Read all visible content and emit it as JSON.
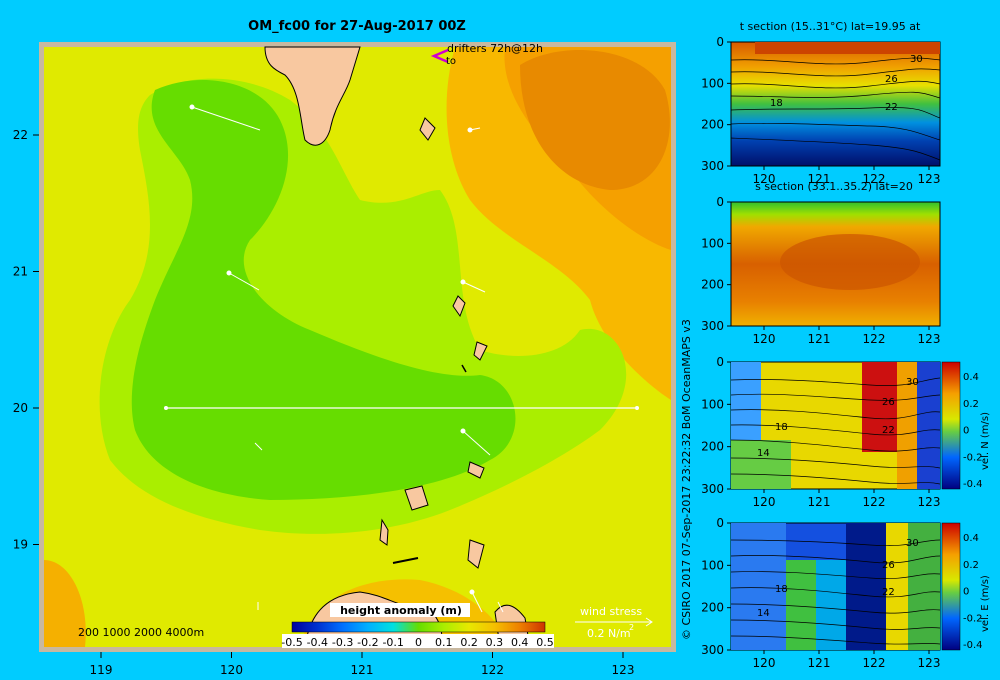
{
  "main_title": "OM_fc00 for 27-Aug-2017 00Z",
  "credit": "© CSIRO 2017   07-Sep-2017 23:22:32 BoM OceanMAPS v3",
  "map": {
    "x_ticks": [
      "119",
      "120",
      "121",
      "122",
      "123"
    ],
    "y_ticks": [
      "22",
      "21",
      "20",
      "19"
    ],
    "drifters_label": "drifters 72h@12h",
    "drifters_sub": "to",
    "bathy_label": "200  1000  2000  4000m",
    "wind_stress_label": "wind stress",
    "wind_stress_value": "0.2 N/m",
    "wind_stress_exp": "2",
    "colorbar_title": "height anomaly  (m)",
    "colorbar_ticks": [
      "-0.5",
      "-0.4",
      "-0.3",
      "-0.2",
      "-0.1",
      "0",
      "0.1",
      "0.2",
      "0.3",
      "0.4",
      "0.5"
    ]
  },
  "panels": [
    {
      "title": "t section (15..31°C) lat=19.95 at",
      "x_ticks": [
        "120",
        "121",
        "122",
        "123"
      ],
      "y_ticks": [
        "0",
        "100",
        "200",
        "300"
      ],
      "contour_labels": [
        "30",
        "26",
        "22",
        "18"
      ]
    },
    {
      "title": "s section (33.1..35.2) lat=20",
      "x_ticks": [
        "120",
        "121",
        "122",
        "123"
      ],
      "y_ticks": [
        "0",
        "100",
        "200",
        "300"
      ],
      "contour_labels": []
    },
    {
      "title": "",
      "x_ticks": [
        "120",
        "121",
        "122",
        "123"
      ],
      "y_ticks": [
        "0",
        "100",
        "200",
        "300"
      ],
      "contour_labels": [
        "30",
        "26",
        "22",
        "18",
        "14"
      ],
      "cbar_label": "vel. N (m/s)",
      "cbar_ticks": [
        "0.4",
        "0.2",
        "0",
        "-0.2",
        "-0.4"
      ]
    },
    {
      "title": "",
      "x_ticks": [
        "120",
        "121",
        "122",
        "123"
      ],
      "y_ticks": [
        "0",
        "100",
        "200",
        "300"
      ],
      "contour_labels": [
        "30",
        "26",
        "22",
        "18",
        "14"
      ],
      "cbar_label": "vel. E (m/s)",
      "cbar_ticks": [
        "0.4",
        "0.2",
        "0",
        "-0.2",
        "-0.4"
      ]
    }
  ],
  "chart_data": [
    {
      "type": "heatmap",
      "title": "OM_fc00 for 27-Aug-2017 00Z",
      "x_axis": "longitude",
      "y_axis": "latitude",
      "xlim": [
        118.5,
        123.5
      ],
      "ylim": [
        18.3,
        22.7
      ],
      "colorbar": {
        "label": "height anomaly (m)",
        "range": [
          -0.5,
          0.5
        ]
      },
      "section_line": {
        "lat": 20.0,
        "lon": [
          119.5,
          123.2
        ]
      },
      "color_scale": [
        "#0000a0",
        "#0030d0",
        "#0070ff",
        "#00b0ff",
        "#00e0e0",
        "#66dd00",
        "#aaee00",
        "#e8e800",
        "#f5c000",
        "#ee8000",
        "#cc3300"
      ]
    },
    {
      "type": "heatmap",
      "title": "t section (15..31°C) lat=19.95 at",
      "xlim": [
        119.5,
        123.2
      ],
      "ylim": [
        300,
        0
      ]
    },
    {
      "type": "heatmap",
      "title": "s section (33.1..35.2) lat=20",
      "xlim": [
        119.5,
        123.2
      ],
      "ylim": [
        300,
        0
      ]
    },
    {
      "type": "heatmap",
      "xlim": [
        119.5,
        123.2
      ],
      "ylim": [
        300,
        0
      ],
      "colorbar": {
        "label": "vel. N (m/s)",
        "range": [
          -0.4,
          0.4
        ]
      }
    },
    {
      "type": "heatmap",
      "xlim": [
        119.5,
        123.2
      ],
      "ylim": [
        300,
        0
      ],
      "colorbar": {
        "label": "vel. E (m/s)",
        "range": [
          -0.4,
          0.4
        ]
      }
    }
  ]
}
